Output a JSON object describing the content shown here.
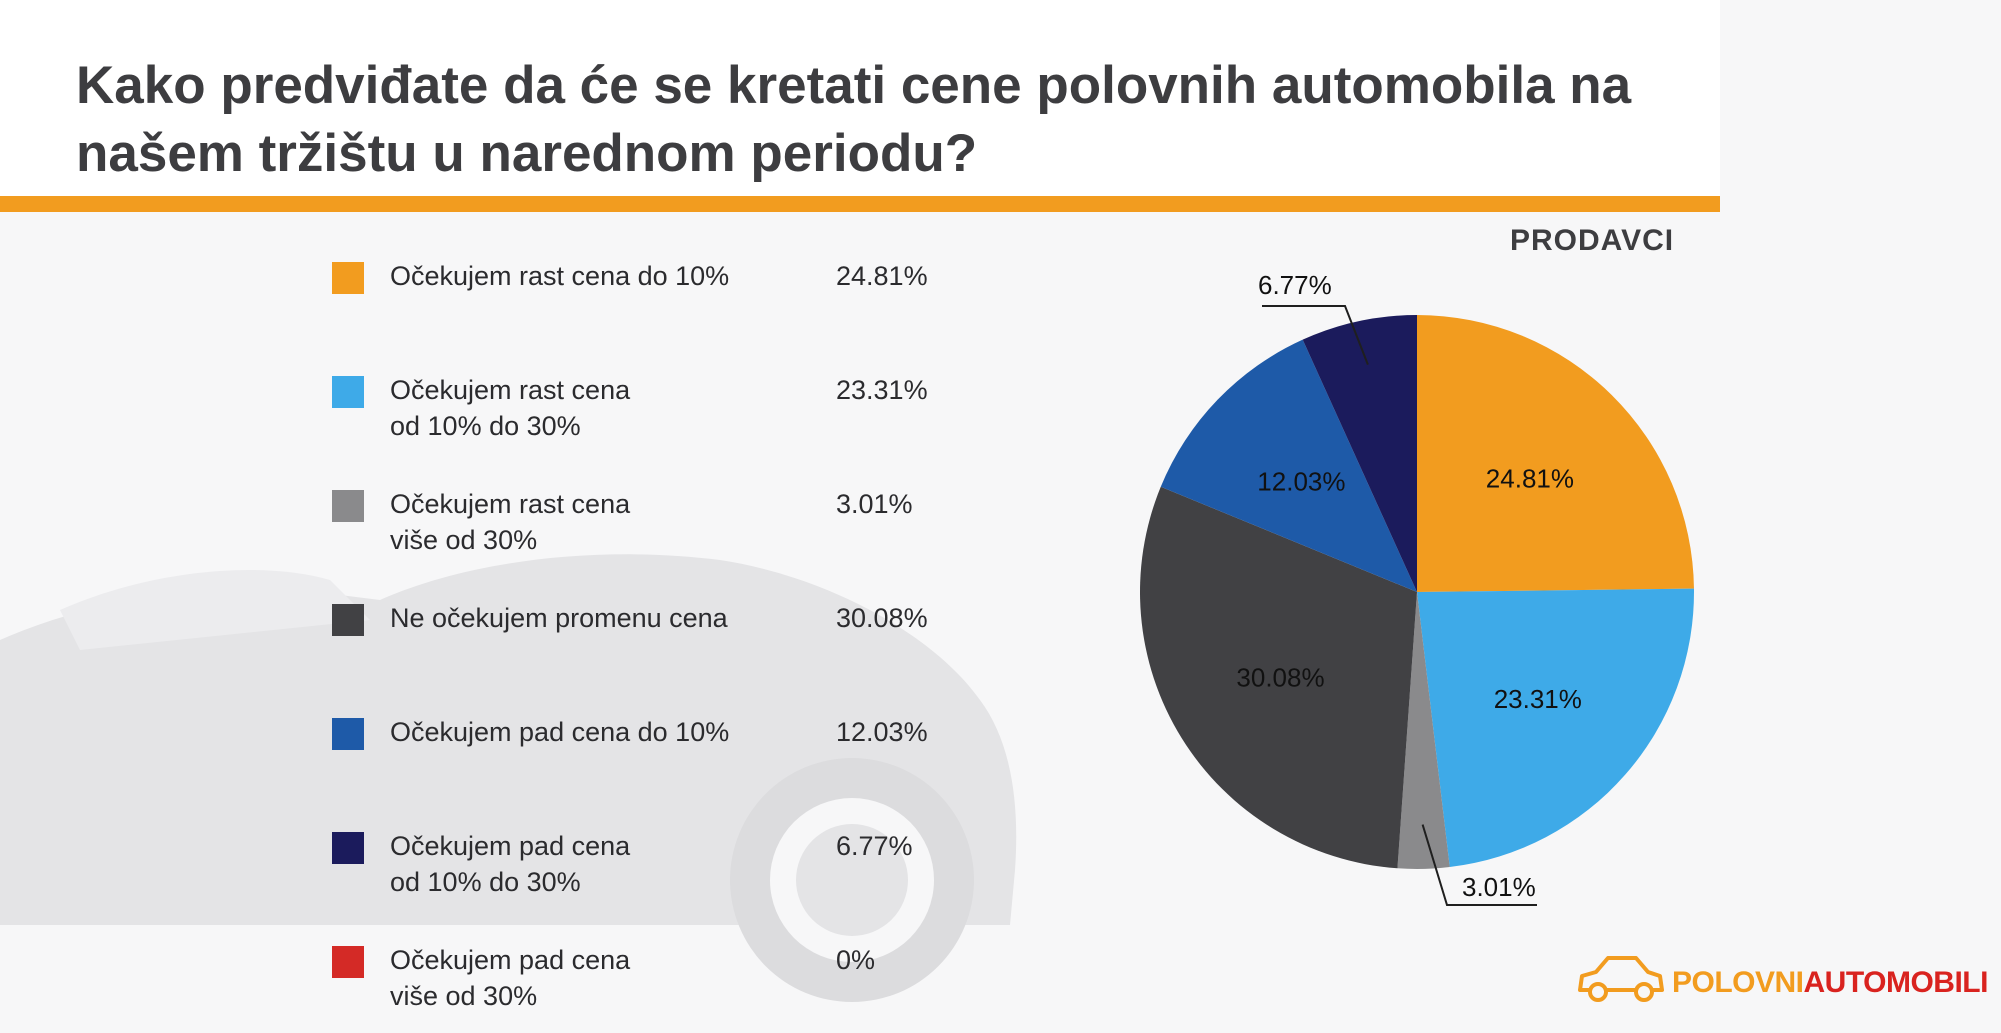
{
  "colors": {
    "orange": "#f29c1f",
    "light_blue": "#3eaae8",
    "gray": "#8a8a8c",
    "dark_gray": "#414144",
    "medium_blue": "#1e5aa8",
    "navy": "#1b1b5c",
    "red": "#d42a26"
  },
  "logo": {
    "part1": "POLOVNI",
    "part2": "AUTOMOBILI",
    "icon": "car-icon"
  },
  "chart_data": {
    "type": "pie",
    "title": "Kako predviđate da će se kretati cene polovnih automobila na našem tržištu u narednom periodu?",
    "subtitle": "PRODAVCI",
    "series": [
      {
        "name": "Očekujem rast cena do 10%",
        "value": 24.81,
        "label": "24.81%",
        "color": "#f29c1f"
      },
      {
        "name": "Očekujem rast cena\nod 10% do 30%",
        "value": 23.31,
        "label": "23.31%",
        "color": "#3eaae8"
      },
      {
        "name": "Očekujem rast cena\nviše od 30%",
        "value": 3.01,
        "label": "3.01%",
        "color": "#8a8a8c"
      },
      {
        "name": "Ne očekujem promenu cena",
        "value": 30.08,
        "label": "30.08%",
        "color": "#414144"
      },
      {
        "name": "Očekujem pad cena do 10%",
        "value": 12.03,
        "label": "12.03%",
        "color": "#1e5aa8"
      },
      {
        "name": "Očekujem pad cena\nod 10% do 30%",
        "value": 6.77,
        "label": "6.77%",
        "color": "#1b1b5c"
      },
      {
        "name": "Očekujem pad cena\nviše od 30%",
        "value": 0,
        "label": "0%",
        "color": "#d42a26"
      }
    ]
  }
}
